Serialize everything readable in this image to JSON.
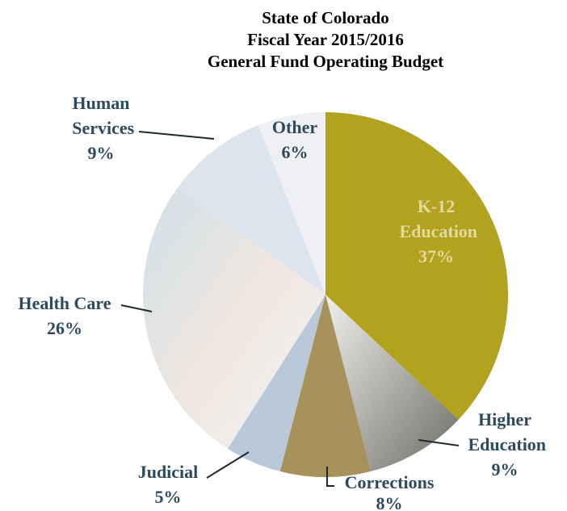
{
  "chart_data": {
    "type": "pie",
    "title": [
      "State of Colorado",
      "Fiscal Year 2015/2016",
      "General Fund Operating Budget"
    ],
    "categories": [
      "K-12 Education",
      "Higher Education",
      "Corrections",
      "Judicial",
      "Health Care",
      "Human Services",
      "Other"
    ],
    "values": [
      37,
      9,
      8,
      5,
      26,
      9,
      6
    ],
    "value_labels": [
      "37%",
      "9%",
      "8%",
      "5%",
      "26%",
      "9%",
      "6%"
    ],
    "colors": [
      "#b3a21e",
      "#8c8a82",
      "#a8925c",
      "#b9c9d9",
      "#e6e2de",
      "#dce5ee",
      "#eef0f3"
    ]
  }
}
